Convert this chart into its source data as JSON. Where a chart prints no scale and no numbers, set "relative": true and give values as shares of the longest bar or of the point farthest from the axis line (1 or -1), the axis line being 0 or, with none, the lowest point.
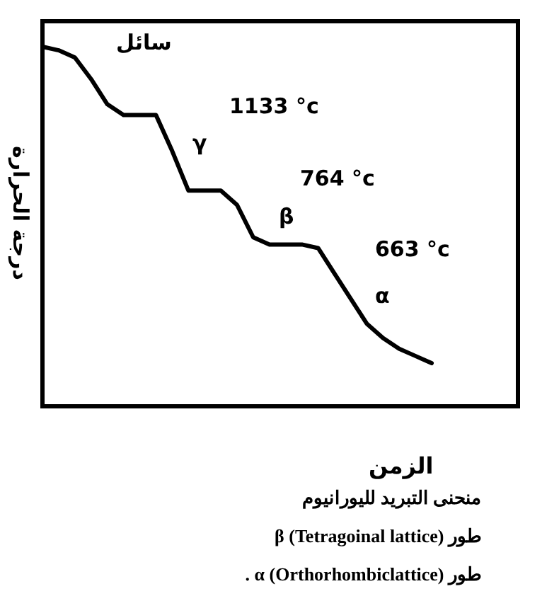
{
  "chart_data": {
    "type": "line",
    "relative": true,
    "title": "منحنى التبريد لليورانيوم",
    "xlabel": "الزمن",
    "ylabel": "درجة الحرارة",
    "categories": [
      null,
      null,
      null,
      null,
      null,
      null,
      null,
      null,
      null,
      null,
      null,
      null,
      null,
      null,
      null,
      null,
      null,
      null,
      null,
      null,
      null,
      null,
      null,
      null,
      null
    ],
    "series": [
      {
        "color": "#000000",
        "values": [
          1.0,
          0.99,
          0.97,
          0.91,
          0.84,
          0.81,
          0.81,
          0.81,
          0.71,
          0.6,
          0.6,
          0.6,
          0.56,
          0.47,
          0.45,
          0.45,
          0.45,
          0.44,
          0.37,
          0.3,
          0.23,
          0.19,
          0.16,
          0.14,
          0.12
        ]
      }
    ],
    "marker": "none",
    "line_style": "solid",
    "grid": false,
    "annotations": [
      "سائل",
      "1133 °c",
      "γ",
      "764 °c",
      "β",
      "663 °c",
      "α",
      "طور β (Tetragoinal lattice)",
      "طور α (Orthorhombiclattice) ."
    ]
  }
}
